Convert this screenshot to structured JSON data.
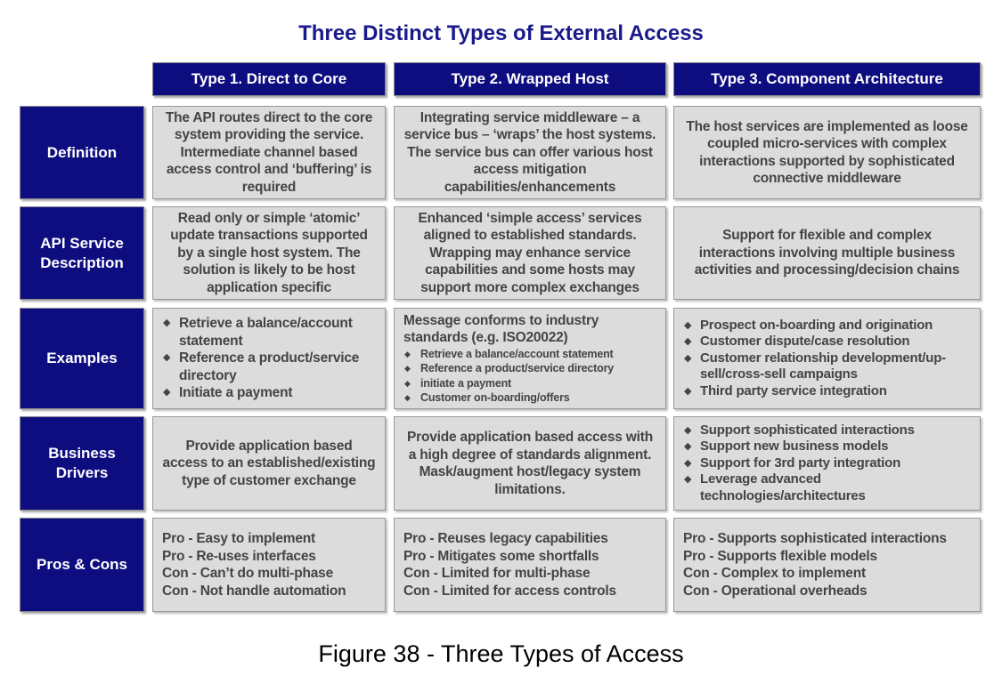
{
  "title": "Three Distinct Types of External Access",
  "columns": [
    "Type 1. Direct to Core",
    "Type 2. Wrapped Host",
    "Type 3. Component Architecture"
  ],
  "rows": [
    {
      "label": "Definition",
      "cells": [
        "The API routes direct to the core system providing the service. Intermediate channel based access control and ‘buffering’ is required",
        "Integrating service middleware – a service bus – ‘wraps’ the host systems. The service bus can offer various host access mitigation capabilities/enhancements",
        "The host services are implemented as loose coupled micro-services with complex interactions supported by sophisticated connective middleware"
      ]
    },
    {
      "label": "API Service Description",
      "cells": [
        "Read only or simple ‘atomic’ update transactions supported by a single host system. The solution is likely to be host application specific",
        "Enhanced ‘simple access’ services aligned to established standards. Wrapping may enhance service capabilities and some hosts may support more complex exchanges",
        "Support for flexible and complex interactions involving multiple business activities and processing/decision chains"
      ]
    },
    {
      "label": "Examples",
      "cells": [
        {
          "items": [
            "Retrieve a balance/account statement",
            "Reference a product/service directory",
            "Initiate a payment"
          ]
        },
        {
          "intro": "Message conforms to industry standards (e.g. ISO20022)",
          "items": [
            "Retrieve a balance/account statement",
            "Reference a product/service directory",
            "initiate a payment",
            "Customer  on-boarding/offers"
          ]
        },
        {
          "items": [
            "Prospect on-boarding and origination",
            "Customer dispute/case resolution",
            "Customer relationship development/up-sell/cross-sell campaigns",
            "Third party service integration"
          ]
        }
      ]
    },
    {
      "label": "Business Drivers",
      "cells": [
        "Provide application based access to an established/existing type of customer exchange",
        "Provide application based access with a high degree of standards alignment. Mask/augment host/legacy system limitations.",
        {
          "items": [
            "Support sophisticated interactions",
            "Support new business models",
            "Support for 3rd party integration",
            "Leverage advanced technologies/architectures"
          ]
        }
      ]
    },
    {
      "label": "Pros & Cons",
      "cells": [
        {
          "lines": [
            "Pro - Easy to implement",
            "Pro - Re-uses interfaces",
            "Con - Can’t do multi-phase",
            "Con - Not handle automation"
          ]
        },
        {
          "lines": [
            "Pro - Reuses legacy capabilities",
            "Pro - Mitigates some shortfalls",
            "Con - Limited for multi-phase",
            "Con - Limited for access controls"
          ]
        },
        {
          "lines": [
            "Pro - Supports sophisticated interactions",
            "Pro - Supports flexible models",
            "Con - Complex to implement",
            "Con - Operational overheads"
          ]
        }
      ]
    }
  ],
  "caption": "Figure 38 - Three Types of Access",
  "colors": {
    "header_bg": "#0d0d80",
    "cell_bg": "#dcdcdc",
    "title": "#1a1a8c"
  }
}
